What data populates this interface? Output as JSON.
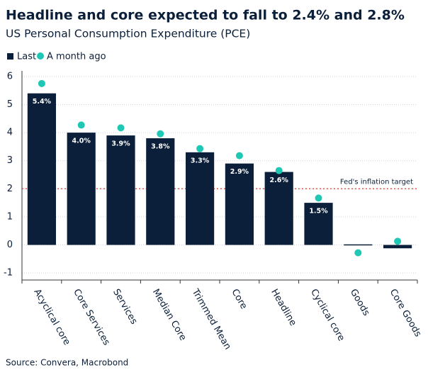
{
  "chart_data": {
    "type": "bar",
    "title": "Headline and core expected to fall to 2.4% and 2.8%",
    "subtitle": "US Personal Consumption Expenditure (PCE)",
    "categories": [
      "Acyclical core",
      "Core Services",
      "Services",
      "Median Core",
      "Trimmed Mean",
      "Core",
      "Headline",
      "Cyclical core",
      "Goods",
      "Core Goods"
    ],
    "series": [
      {
        "name": "Last",
        "color": "#0b1f3a",
        "values": [
          5.4,
          4.0,
          3.9,
          3.8,
          3.3,
          2.9,
          2.6,
          1.5,
          0.02,
          -0.12
        ],
        "value_labels": [
          "5.4%",
          "4.0%",
          "3.9%",
          "3.8%",
          "3.3%",
          "2.9%",
          "2.6%",
          "1.5%",
          null,
          null
        ]
      },
      {
        "name": "A month ago",
        "color": "#1fc8b4",
        "values": [
          5.75,
          4.27,
          4.17,
          3.96,
          3.43,
          3.18,
          2.65,
          1.67,
          -0.28,
          0.13
        ]
      }
    ],
    "reference_line": {
      "value": 2,
      "label": "Fed's inflation target",
      "color": "#e05a4e"
    },
    "ylim": [
      -1.25,
      6.2
    ],
    "yticks": [
      -1,
      0,
      1,
      2,
      3,
      4,
      5,
      6
    ],
    "grid": true,
    "source": "Source: Convera, Macrobond"
  }
}
